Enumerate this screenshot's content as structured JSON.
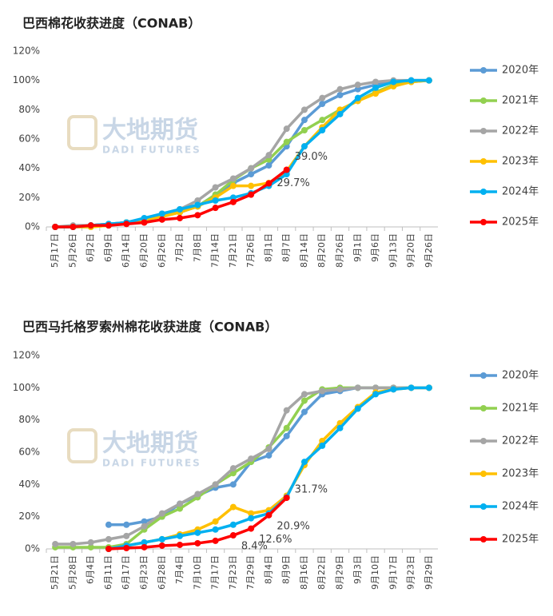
{
  "chart_data": [
    {
      "type": "line",
      "title": "巴西棉花收获进度（CONAB）",
      "watermark": [
        "大地期货",
        "DADI FUTURES"
      ],
      "categories": [
        "5月17日",
        "5月26日",
        "6月2日",
        "6月9日",
        "6月14日",
        "6月20日",
        "6月26日",
        "7月2日",
        "7月8日",
        "7月14日",
        "7月21日",
        "7月26日",
        "8月1日",
        "8月7日",
        "8月14日",
        "8月20日",
        "8月26日",
        "9月1日",
        "9月6日",
        "9月13日",
        "9月20日",
        "9月26日"
      ],
      "ylim": [
        0,
        120
      ],
      "yticks": [
        {
          "value": 0,
          "label": "0%"
        },
        {
          "value": 20,
          "label": "20%"
        },
        {
          "value": 40,
          "label": "40%"
        },
        {
          "value": 60,
          "label": "60%"
        },
        {
          "value": 80,
          "label": "80%"
        },
        {
          "value": 100,
          "label": "100%"
        },
        {
          "value": 120,
          "label": "120%"
        }
      ],
      "legend": "right",
      "series": [
        {
          "name": "2020年",
          "color": "#5b9bd5",
          "values": [
            0,
            0,
            1,
            2,
            3,
            4,
            8,
            10,
            14,
            22,
            30,
            36,
            42,
            55,
            73,
            84,
            90,
            94,
            97,
            99,
            100,
            100
          ]
        },
        {
          "name": "2021年",
          "color": "#92d050",
          "values": [
            0,
            0,
            0,
            1,
            3,
            5,
            7,
            10,
            14,
            22,
            32,
            40,
            46,
            58,
            66,
            73,
            80,
            86,
            92,
            97,
            99,
            100
          ]
        },
        {
          "name": "2022年",
          "color": "#a5a5a5",
          "values": [
            0,
            1,
            1,
            2,
            3,
            5,
            9,
            12,
            18,
            27,
            33,
            40,
            49,
            67,
            80,
            88,
            94,
            97,
            99,
            100,
            100,
            100
          ]
        },
        {
          "name": "2023年",
          "color": "#ffc000",
          "values": [
            0,
            0,
            0,
            1,
            3,
            5,
            7,
            10,
            14,
            20,
            28,
            28,
            30,
            38,
            55,
            68,
            80,
            86,
            91,
            96,
            99,
            100
          ]
        },
        {
          "name": "2024年",
          "color": "#00b0f0",
          "values": [
            0,
            0,
            1,
            2,
            3,
            6,
            9,
            12,
            15,
            18,
            20,
            23,
            28,
            36,
            55,
            66,
            77,
            88,
            95,
            99,
            100,
            100
          ]
        },
        {
          "name": "2025年",
          "color": "#ff0000",
          "values": [
            0,
            0,
            1,
            1,
            2,
            3,
            5,
            6,
            8,
            13,
            17,
            22,
            29.7,
            39,
            null,
            null,
            null,
            null,
            null,
            null,
            null,
            null
          ],
          "value_labels": [
            null,
            null,
            null,
            null,
            null,
            null,
            null,
            null,
            null,
            null,
            null,
            null,
            "29.7%",
            "39.0%",
            null,
            null,
            null,
            null,
            null,
            null,
            null,
            null
          ]
        }
      ]
    },
    {
      "type": "line",
      "title": "巴西马托格罗索州棉花收获进度（CONAB）",
      "watermark": [
        "大地期货",
        "DADI FUTURES"
      ],
      "categories": [
        "5月21日",
        "5月28日",
        "6月4日",
        "6月11日",
        "6月17日",
        "6月23日",
        "6月28日",
        "7月4日",
        "7月10日",
        "7月17日",
        "7月23日",
        "7月29日",
        "8月4日",
        "8月9日",
        "8月16日",
        "8月22日",
        "8月29日",
        "9月3日",
        "9月10日",
        "9月17日",
        "9月23日",
        "9月29日"
      ],
      "ylim": [
        0,
        120
      ],
      "yticks": [
        {
          "value": 0,
          "label": "0%"
        },
        {
          "value": 20,
          "label": "20%"
        },
        {
          "value": 40,
          "label": "40%"
        },
        {
          "value": 60,
          "label": "60%"
        },
        {
          "value": 80,
          "label": "80%"
        },
        {
          "value": 100,
          "label": "100%"
        },
        {
          "value": 120,
          "label": "120%"
        }
      ],
      "legend": "right",
      "series": [
        {
          "name": "2020年",
          "color": "#5b9bd5",
          "values": [
            null,
            null,
            null,
            15,
            15,
            17,
            20,
            28,
            33,
            38,
            40,
            54,
            58,
            70,
            85,
            96,
            98,
            100,
            100,
            100,
            100,
            100
          ]
        },
        {
          "name": "2021年",
          "color": "#92d050",
          "values": [
            1,
            1,
            1,
            1,
            3,
            12,
            20,
            25,
            32,
            40,
            47,
            54,
            63,
            75,
            92,
            99,
            100,
            100,
            100,
            100,
            100,
            100
          ]
        },
        {
          "name": "2022年",
          "color": "#a5a5a5",
          "values": [
            3,
            3,
            4,
            6,
            8,
            14,
            22,
            28,
            34,
            40,
            50,
            56,
            62,
            86,
            96,
            98,
            99,
            100,
            100,
            100,
            100,
            100
          ]
        },
        {
          "name": "2023年",
          "color": "#ffc000",
          "values": [
            null,
            null,
            null,
            0,
            2,
            4,
            6,
            9,
            12,
            17,
            26,
            22,
            24,
            33,
            52,
            67,
            78,
            88,
            97,
            99,
            100,
            100
          ]
        },
        {
          "name": "2024年",
          "color": "#00b0f0",
          "values": [
            null,
            null,
            null,
            0,
            2,
            4,
            6,
            8,
            10,
            12,
            15,
            19,
            22,
            32,
            54,
            64,
            75,
            87,
            96,
            99,
            100,
            100
          ]
        },
        {
          "name": "2025年",
          "color": "#ff0000",
          "values": [
            null,
            null,
            null,
            0,
            0.5,
            1,
            2,
            2.5,
            3.5,
            5,
            8.4,
            12.6,
            20.9,
            31.7,
            null,
            null,
            null,
            null,
            null,
            null,
            null,
            null
          ],
          "value_labels": [
            null,
            null,
            null,
            null,
            null,
            null,
            null,
            null,
            null,
            null,
            "8.4%",
            "12.6%",
            "20.9%",
            "31.7%",
            null,
            null,
            null,
            null,
            null,
            null,
            null,
            null
          ]
        }
      ]
    }
  ]
}
